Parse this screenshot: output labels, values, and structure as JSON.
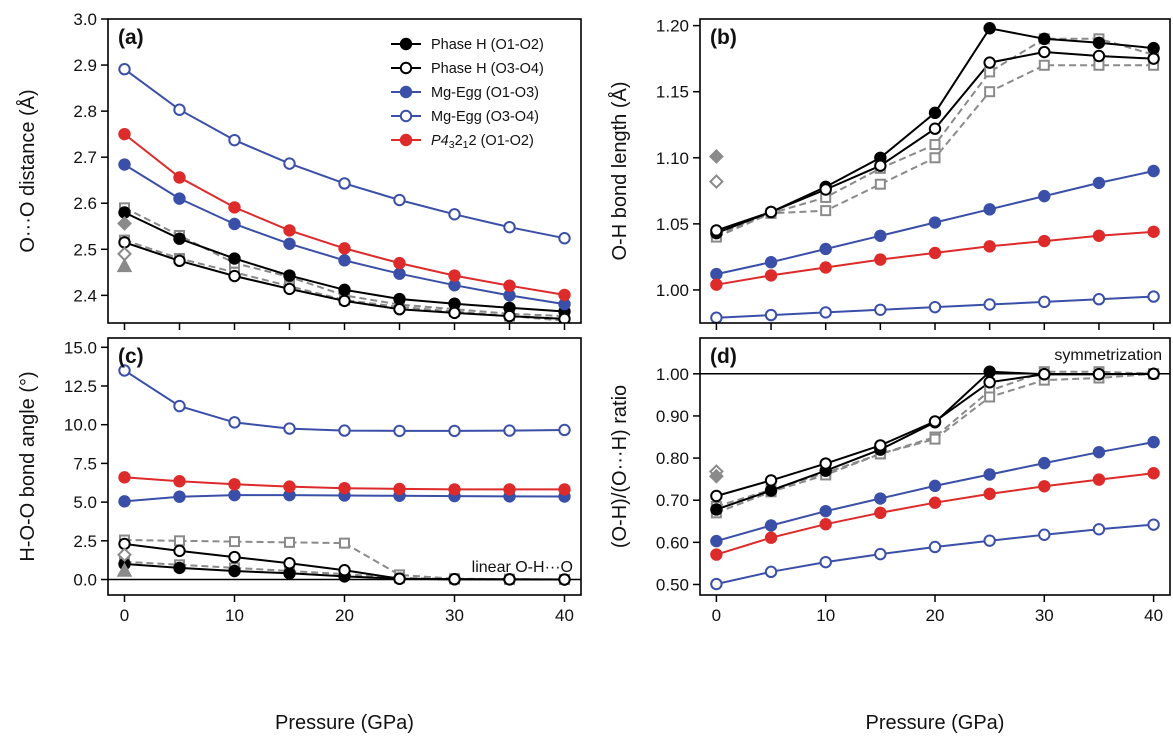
{
  "colors": {
    "black": "#000000",
    "blue": "#3a4fa8",
    "red": "#dd2a2a",
    "gray": "#8a8a8a"
  },
  "legend": [
    {
      "text": "Phase H (O1-O2)",
      "color": "#000000",
      "filled": true
    },
    {
      "text": "Phase H (O3-O4)",
      "color": "#000000",
      "filled": false
    },
    {
      "text": "Mg-Egg (O1-O3)",
      "color": "#3a4fa8",
      "filled": true
    },
    {
      "text": "Mg-Egg (O3-O4)",
      "color": "#3a4fa8",
      "filled": false
    },
    {
      "parts": [
        {
          "t": "P4"
        },
        {
          "t": "3",
          "sub": true
        },
        {
          "t": "2"
        },
        {
          "t": "1",
          "sub": true
        },
        {
          "t": "2 (O1-O2)"
        }
      ],
      "color": "#dd2a2a",
      "filled": true
    }
  ],
  "chart_data": [
    {
      "panel": "a",
      "label": "(a)",
      "type": "line",
      "ylabel": "O···O distance (Å)",
      "xlabel": "",
      "xlim": [
        -1.5,
        41.5
      ],
      "ylim": [
        2.34,
        3.0
      ],
      "xticks": [
        0,
        5,
        10,
        15,
        20,
        25,
        30,
        35,
        40
      ],
      "xtick_labels": [],
      "yticks": [
        2.4,
        2.5,
        2.6,
        2.7,
        2.8,
        2.9,
        3.0
      ],
      "ytick_labels": [
        "2.4",
        "2.5",
        "2.6",
        "2.7",
        "2.8",
        "2.9",
        "3.0"
      ],
      "x": [
        0,
        5,
        10,
        15,
        20,
        25,
        30,
        35,
        40
      ],
      "series": [
        {
          "id": "gray-dash-1",
          "style": "gray-dashed",
          "marker": "square",
          "values": [
            2.59,
            2.53,
            2.47,
            2.44,
            2.4,
            2.38,
            2.37,
            2.36,
            2.355
          ]
        },
        {
          "id": "gray-dash-2",
          "style": "gray-dashed",
          "marker": "square",
          "values": [
            2.52,
            2.48,
            2.45,
            2.42,
            2.39,
            2.375,
            2.365,
            2.355,
            2.345
          ]
        },
        {
          "id": "phase-h-o1o2",
          "style": "black-filled",
          "marker": "circle",
          "values": [
            2.58,
            2.523,
            2.48,
            2.443,
            2.412,
            2.392,
            2.382,
            2.373,
            2.365
          ]
        },
        {
          "id": "phase-h-o3o4",
          "style": "black-open",
          "marker": "circle",
          "values": [
            2.515,
            2.475,
            2.442,
            2.414,
            2.388,
            2.37,
            2.362,
            2.355,
            2.349
          ]
        },
        {
          "id": "mg-egg-o1o3",
          "style": "blue-filled",
          "marker": "circle",
          "values": [
            2.684,
            2.61,
            2.555,
            2.512,
            2.476,
            2.447,
            2.422,
            2.4,
            2.381
          ]
        },
        {
          "id": "mg-egg-o3o4",
          "style": "blue-open",
          "marker": "circle",
          "values": [
            2.891,
            2.803,
            2.737,
            2.686,
            2.643,
            2.607,
            2.576,
            2.548,
            2.524
          ]
        },
        {
          "id": "p43212-o1o2",
          "style": "red-filled",
          "marker": "circle",
          "values": [
            2.75,
            2.656,
            2.591,
            2.541,
            2.502,
            2.47,
            2.443,
            2.421,
            2.401
          ]
        }
      ],
      "extras": [
        {
          "x": 0,
          "y": 2.556,
          "marker": "diamond",
          "filled": true
        },
        {
          "x": 0,
          "y": 2.49,
          "marker": "diamond",
          "filled": false
        },
        {
          "x": 0,
          "y": 2.463,
          "marker": "triangle",
          "filled": true
        }
      ],
      "hlines": [],
      "annotations": []
    },
    {
      "panel": "b",
      "label": "(b)",
      "type": "line",
      "ylabel": "O-H bond length (Å)",
      "xlabel": "",
      "xlim": [
        -1.5,
        41.5
      ],
      "ylim": [
        0.975,
        1.205
      ],
      "xticks": [
        0,
        5,
        10,
        15,
        20,
        25,
        30,
        35,
        40
      ],
      "xtick_labels": [],
      "yticks": [
        1.0,
        1.05,
        1.1,
        1.15,
        1.2
      ],
      "ytick_labels": [
        "1.00",
        "1.05",
        "1.10",
        "1.15",
        "1.20"
      ],
      "x": [
        0,
        5,
        10,
        15,
        20,
        25,
        30,
        35,
        40
      ],
      "series": [
        {
          "id": "gray-dash-1",
          "style": "gray-dashed",
          "marker": "square",
          "values": [
            1.042,
            1.058,
            1.07,
            1.092,
            1.11,
            1.165,
            1.19,
            1.19,
            1.178
          ]
        },
        {
          "id": "gray-dash-2",
          "style": "gray-dashed",
          "marker": "square",
          "values": [
            1.04,
            1.058,
            1.06,
            1.08,
            1.1,
            1.15,
            1.17,
            1.17,
            1.17
          ]
        },
        {
          "id": "phase-h-o1o2",
          "style": "black-filled",
          "marker": "circle",
          "values": [
            1.043,
            1.059,
            1.078,
            1.1,
            1.134,
            1.198,
            1.19,
            1.187,
            1.183
          ]
        },
        {
          "id": "phase-h-o3o4",
          "style": "black-open",
          "marker": "circle",
          "values": [
            1.045,
            1.059,
            1.076,
            1.094,
            1.122,
            1.172,
            1.18,
            1.177,
            1.175
          ]
        },
        {
          "id": "mg-egg-o1o3",
          "style": "blue-filled",
          "marker": "circle",
          "values": [
            1.012,
            1.021,
            1.031,
            1.041,
            1.051,
            1.061,
            1.071,
            1.081,
            1.09
          ]
        },
        {
          "id": "mg-egg-o3o4",
          "style": "blue-open",
          "marker": "circle",
          "values": [
            0.979,
            0.981,
            0.983,
            0.985,
            0.987,
            0.989,
            0.991,
            0.993,
            0.995
          ]
        },
        {
          "id": "p43212-o1o2",
          "style": "red-filled",
          "marker": "circle",
          "values": [
            1.004,
            1.011,
            1.017,
            1.023,
            1.028,
            1.033,
            1.037,
            1.041,
            1.044
          ]
        }
      ],
      "extras": [
        {
          "x": 0,
          "y": 1.101,
          "marker": "diamond",
          "filled": true
        },
        {
          "x": 0,
          "y": 1.082,
          "marker": "diamond",
          "filled": false
        }
      ],
      "hlines": [],
      "annotations": []
    },
    {
      "panel": "c",
      "label": "(c)",
      "type": "line",
      "ylabel": "H-O-O bond angle (°)",
      "xlabel": "Pressure (GPa)",
      "xlim": [
        -1.5,
        41.5
      ],
      "ylim": [
        -1.0,
        15.6
      ],
      "xticks": [
        0,
        10,
        20,
        30,
        40
      ],
      "xtick_labels": [
        "0",
        "10",
        "20",
        "30",
        "40"
      ],
      "yticks": [
        0.0,
        2.5,
        5.0,
        7.5,
        10.0,
        12.5,
        15.0
      ],
      "ytick_labels": [
        "0.0",
        "2.5",
        "5.0",
        "7.5",
        "10.0",
        "12.5",
        "15.0"
      ],
      "x": [
        0,
        5,
        10,
        15,
        20,
        25,
        30,
        35,
        40
      ],
      "series": [
        {
          "id": "gray-dash-1",
          "style": "gray-dashed",
          "marker": "square",
          "values": [
            2.55,
            2.5,
            2.45,
            2.4,
            2.35,
            0.3,
            0.05,
            0.02,
            0.0
          ]
        },
        {
          "id": "gray-dash-2",
          "style": "gray-dashed",
          "marker": "square",
          "values": [
            1.15,
            0.95,
            0.75,
            0.55,
            0.35,
            0.1,
            0.03,
            0.01,
            0.0
          ]
        },
        {
          "id": "phase-h-o1o2",
          "style": "black-filled",
          "marker": "circle",
          "values": [
            1.0,
            0.75,
            0.55,
            0.4,
            0.2,
            0.05,
            0.02,
            0.01,
            0.0
          ]
        },
        {
          "id": "phase-h-o3o4",
          "style": "black-open",
          "marker": "circle",
          "values": [
            2.3,
            1.85,
            1.45,
            1.05,
            0.6,
            0.05,
            0.02,
            0.01,
            0.0
          ]
        },
        {
          "id": "mg-egg-o1o3",
          "style": "blue-filled",
          "marker": "circle",
          "values": [
            5.05,
            5.35,
            5.45,
            5.45,
            5.43,
            5.41,
            5.39,
            5.37,
            5.36
          ]
        },
        {
          "id": "mg-egg-o3o4",
          "style": "blue-open",
          "marker": "circle",
          "values": [
            13.5,
            11.2,
            10.15,
            9.75,
            9.62,
            9.6,
            9.6,
            9.62,
            9.66
          ]
        },
        {
          "id": "p43212-o1o2",
          "style": "red-filled",
          "marker": "circle",
          "values": [
            6.6,
            6.35,
            6.15,
            6.0,
            5.9,
            5.85,
            5.82,
            5.82,
            5.82
          ]
        }
      ],
      "extras": [
        {
          "x": 0,
          "y": 1.6,
          "marker": "diamond",
          "filled": false
        },
        {
          "x": 0,
          "y": 0.55,
          "marker": "triangle",
          "filled": true
        }
      ],
      "hlines": [
        {
          "y": 0.0
        }
      ],
      "annotations": [
        {
          "text": "linear O-H···O",
          "anchor": "end",
          "at": "bottom-right"
        }
      ]
    },
    {
      "panel": "d",
      "label": "(d)",
      "type": "line",
      "ylabel": "(O-H)/(O···H) ratio",
      "xlabel": "Pressure (GPa)",
      "xlim": [
        -1.5,
        41.5
      ],
      "ylim": [
        0.475,
        1.085
      ],
      "xticks": [
        0,
        10,
        20,
        30,
        40
      ],
      "xtick_labels": [
        "0",
        "10",
        "20",
        "30",
        "40"
      ],
      "yticks": [
        0.5,
        0.6,
        0.7,
        0.8,
        0.9,
        1.0
      ],
      "ytick_labels": [
        "0.50",
        "0.60",
        "0.70",
        "0.80",
        "0.90",
        "1.00"
      ],
      "x": [
        0,
        5,
        10,
        15,
        20,
        25,
        30,
        35,
        40
      ],
      "series": [
        {
          "id": "gray-dash-1",
          "style": "gray-dashed",
          "marker": "square",
          "values": [
            0.685,
            0.725,
            0.765,
            0.81,
            0.85,
            0.96,
            1.005,
            1.005,
            1.0
          ]
        },
        {
          "id": "gray-dash-2",
          "style": "gray-dashed",
          "marker": "square",
          "values": [
            0.67,
            0.72,
            0.76,
            0.81,
            0.845,
            0.945,
            0.985,
            0.99,
            1.0
          ]
        },
        {
          "id": "phase-h-o1o2",
          "style": "black-filled",
          "marker": "circle",
          "values": [
            0.678,
            0.723,
            0.77,
            0.82,
            0.885,
            1.005,
            0.999,
            0.999,
            1.0
          ]
        },
        {
          "id": "phase-h-o3o4",
          "style": "black-open",
          "marker": "circle",
          "values": [
            0.71,
            0.747,
            0.787,
            0.83,
            0.887,
            0.98,
            0.999,
            0.999,
            1.0
          ]
        },
        {
          "id": "mg-egg-o1o3",
          "style": "blue-filled",
          "marker": "circle",
          "values": [
            0.603,
            0.64,
            0.674,
            0.704,
            0.734,
            0.761,
            0.788,
            0.814,
            0.838
          ]
        },
        {
          "id": "mg-egg-o3o4",
          "style": "blue-open",
          "marker": "circle",
          "values": [
            0.501,
            0.53,
            0.553,
            0.572,
            0.589,
            0.604,
            0.618,
            0.631,
            0.642
          ]
        },
        {
          "id": "p43212-o1o2",
          "style": "red-filled",
          "marker": "circle",
          "values": [
            0.571,
            0.611,
            0.643,
            0.67,
            0.694,
            0.715,
            0.733,
            0.749,
            0.764
          ]
        }
      ],
      "extras": [
        {
          "x": 0,
          "y": 0.768,
          "marker": "diamond",
          "filled": false
        },
        {
          "x": 0,
          "y": 0.757,
          "marker": "diamond",
          "filled": true
        }
      ],
      "hlines": [
        {
          "y": 1.0
        }
      ],
      "annotations": [
        {
          "text": "symmetrization",
          "anchor": "end",
          "at": "top-right"
        }
      ]
    }
  ]
}
